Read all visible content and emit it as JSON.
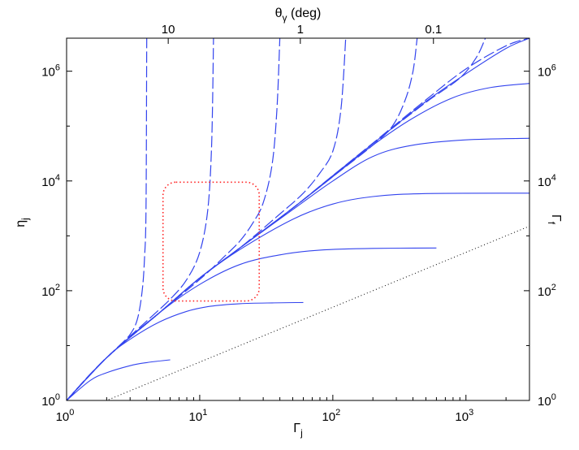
{
  "chart_data": {
    "type": "line",
    "x_scale": "log",
    "y_scale": "log",
    "xlim": [
      1,
      3000
    ],
    "ylim": [
      1,
      4000000
    ],
    "xlabel": "Γj",
    "ylabel": "ηj",
    "top_axis_label": "θγ (deg)",
    "right_axis_label": "Γf",
    "x_ticks": [
      {
        "value": 1,
        "label": "10^0"
      },
      {
        "value": 10,
        "label": "10^1"
      },
      {
        "value": 100,
        "label": "10^2"
      },
      {
        "value": 1000,
        "label": "10^3"
      }
    ],
    "y_ticks": [
      {
        "value": 1,
        "label": "10^0"
      },
      {
        "value": 100,
        "label": "10^2"
      },
      {
        "value": 10000,
        "label": "10^4"
      },
      {
        "value": 1000000,
        "label": "10^6"
      }
    ],
    "top_ticks": [
      {
        "value": 5.8,
        "label": "10"
      },
      {
        "value": 57,
        "label": "1"
      },
      {
        "value": 570,
        "label": "0.1"
      }
    ],
    "right_ticks": [
      {
        "value": 1,
        "label": "10^0"
      },
      {
        "value": 100,
        "label": "10^2"
      },
      {
        "value": 10000,
        "label": "10^4"
      },
      {
        "value": 1000000,
        "label": "10^6"
      }
    ],
    "solid_curves": [
      {
        "points": [
          [
            1,
            1
          ],
          [
            1.5,
            2.3
          ],
          [
            2,
            3.2
          ],
          [
            3,
            4.3
          ],
          [
            4,
            4.9
          ],
          [
            6,
            5.5
          ]
        ]
      },
      {
        "points": [
          [
            1,
            1
          ],
          [
            2,
            6
          ],
          [
            3,
            13
          ],
          [
            5,
            27
          ],
          [
            8,
            42
          ],
          [
            12,
            52
          ],
          [
            20,
            58
          ],
          [
            35,
            60
          ],
          [
            60,
            61
          ]
        ]
      },
      {
        "points": [
          [
            1,
            1
          ],
          [
            2,
            6
          ],
          [
            5,
            40
          ],
          [
            10,
            130
          ],
          [
            20,
            300
          ],
          [
            40,
            450
          ],
          [
            80,
            550
          ],
          [
            200,
            590
          ],
          [
            600,
            600
          ]
        ]
      },
      {
        "points": [
          [
            1,
            1
          ],
          [
            2,
            6
          ],
          [
            5,
            40
          ],
          [
            10,
            170
          ],
          [
            20,
            560
          ],
          [
            50,
            2000
          ],
          [
            100,
            3800
          ],
          [
            200,
            5200
          ],
          [
            500,
            5900
          ],
          [
            3000,
            6000
          ]
        ]
      },
      {
        "points": [
          [
            1,
            1
          ],
          [
            2,
            6
          ],
          [
            5,
            40
          ],
          [
            10,
            170
          ],
          [
            20,
            600
          ],
          [
            50,
            3000
          ],
          [
            100,
            10000
          ],
          [
            200,
            28000
          ],
          [
            400,
            45000
          ],
          [
            1000,
            56000
          ],
          [
            3000,
            60000
          ]
        ]
      },
      {
        "points": [
          [
            1,
            1
          ],
          [
            2,
            6
          ],
          [
            5,
            40
          ],
          [
            10,
            170
          ],
          [
            20,
            600
          ],
          [
            50,
            3200
          ],
          [
            100,
            12000
          ],
          [
            200,
            45000
          ],
          [
            400,
            140000
          ],
          [
            800,
            330000
          ],
          [
            1500,
            500000
          ],
          [
            3000,
            600000
          ]
        ]
      },
      {
        "points": [
          [
            1,
            1
          ],
          [
            2,
            6
          ],
          [
            5,
            40
          ],
          [
            10,
            170
          ],
          [
            20,
            600
          ],
          [
            50,
            3200
          ],
          [
            100,
            12500
          ],
          [
            200,
            48000
          ],
          [
            500,
            280000
          ],
          [
            1000,
            900000
          ],
          [
            2000,
            2600000
          ],
          [
            3000,
            4000000
          ]
        ]
      }
    ],
    "dashed_curves": [
      {
        "points": [
          [
            1,
            1
          ],
          [
            1.5,
            3
          ],
          [
            2,
            6
          ],
          [
            2.5,
            10
          ],
          [
            3,
            16
          ],
          [
            3.4,
            30
          ],
          [
            3.7,
            100
          ],
          [
            3.85,
            400
          ],
          [
            3.95,
            3000
          ],
          [
            4.0,
            4000000
          ]
        ]
      },
      {
        "points": [
          [
            1,
            1
          ],
          [
            2,
            6
          ],
          [
            4,
            28
          ],
          [
            6,
            70
          ],
          [
            8,
            160
          ],
          [
            10,
            500
          ],
          [
            11.5,
            3000
          ],
          [
            12.3,
            50000
          ],
          [
            12.7,
            4000000
          ]
        ]
      },
      {
        "points": [
          [
            1,
            1
          ],
          [
            2,
            6
          ],
          [
            5,
            40
          ],
          [
            10,
            160
          ],
          [
            15,
            400
          ],
          [
            20,
            800
          ],
          [
            25,
            1700
          ],
          [
            30,
            4000
          ],
          [
            35,
            20000
          ],
          [
            38,
            200000
          ],
          [
            40,
            4000000
          ]
        ]
      },
      {
        "points": [
          [
            1,
            1
          ],
          [
            2,
            6
          ],
          [
            5,
            40
          ],
          [
            10,
            170
          ],
          [
            20,
            600
          ],
          [
            40,
            2500
          ],
          [
            60,
            6000
          ],
          [
            80,
            14000
          ],
          [
            100,
            35000
          ],
          [
            115,
            200000
          ],
          [
            125,
            4000000
          ]
        ]
      },
      {
        "points": [
          [
            1,
            1
          ],
          [
            2,
            6
          ],
          [
            5,
            40
          ],
          [
            10,
            170
          ],
          [
            20,
            600
          ],
          [
            50,
            3200
          ],
          [
            100,
            12000
          ],
          [
            200,
            45000
          ],
          [
            280,
            100000
          ],
          [
            350,
            300000
          ],
          [
            400,
            1000000
          ],
          [
            430,
            4000000
          ]
        ]
      },
      {
        "points": [
          [
            1,
            1
          ],
          [
            2,
            6
          ],
          [
            5,
            40
          ],
          [
            10,
            170
          ],
          [
            20,
            600
          ],
          [
            50,
            3200
          ],
          [
            100,
            12500
          ],
          [
            200,
            48000
          ],
          [
            500,
            270000
          ],
          [
            900,
            750000
          ],
          [
            1200,
            1800000
          ],
          [
            1400,
            4000000
          ]
        ]
      },
      {
        "points": [
          [
            1,
            1
          ],
          [
            2,
            6
          ],
          [
            5,
            40
          ],
          [
            10,
            170
          ],
          [
            20,
            600
          ],
          [
            50,
            3200
          ],
          [
            100,
            12500
          ],
          [
            200,
            49000
          ],
          [
            500,
            300000
          ],
          [
            1000,
            1100000
          ],
          [
            2000,
            2900000
          ],
          [
            3000,
            4000000
          ]
        ]
      }
    ],
    "dotted_reference_line": {
      "points": [
        [
          1,
          0.5
        ],
        [
          3000,
          1500
        ]
      ]
    },
    "highlight_box": {
      "x_range": [
        5.3,
        28
      ],
      "y_range": [
        65,
        9500
      ]
    },
    "grid": false,
    "legend": "none",
    "colors": {
      "curves": "#3344ee",
      "reference": "#000000",
      "highlight": "#ff2222"
    }
  }
}
